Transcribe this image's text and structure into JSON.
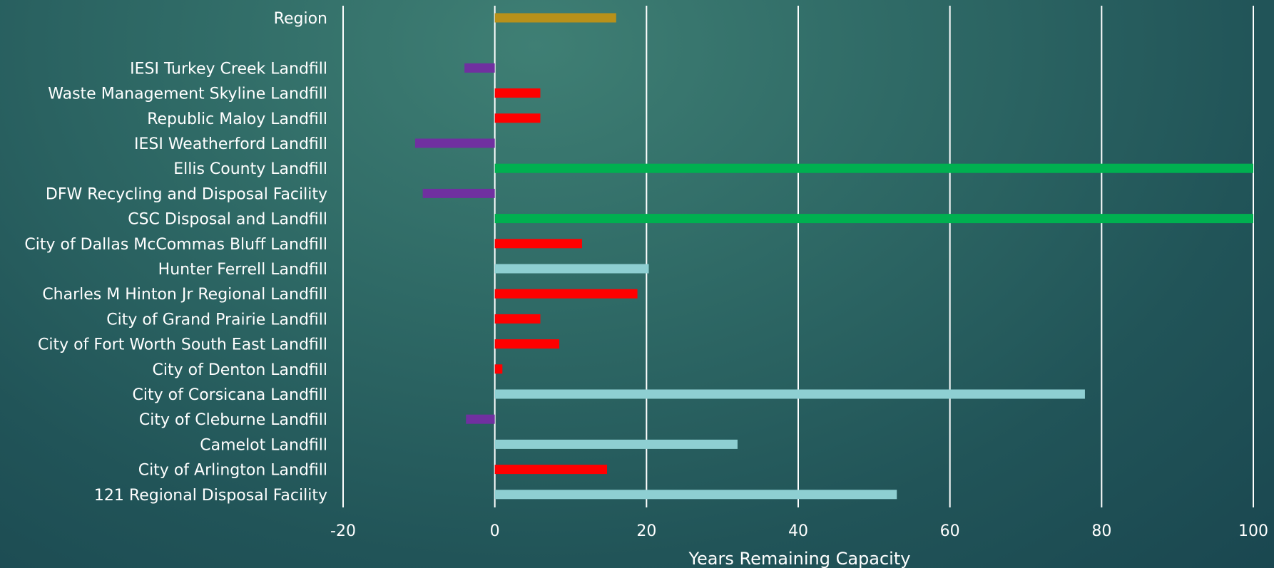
{
  "chart_data": {
    "type": "bar",
    "orientation": "horizontal",
    "xlabel": "Years Remaining Capacity",
    "xlim": [
      -20,
      100
    ],
    "xticks": [
      -20,
      0,
      20,
      40,
      60,
      80,
      100
    ],
    "grid": true,
    "legend": "none",
    "bars": [
      {
        "category": "Region",
        "value": 16,
        "color": "#b8911a"
      },
      {
        "category": "",
        "value": null,
        "color": null
      },
      {
        "category": "IESI Turkey Creek Landfill",
        "value": -4,
        "color": "#7030a0"
      },
      {
        "category": "Waste Management Skyline Landfill",
        "value": 6,
        "color": "#ff0000"
      },
      {
        "category": "Republic Maloy Landfill",
        "value": 6,
        "color": "#ff0000"
      },
      {
        "category": "IESI Weatherford Landfill",
        "value": -10.5,
        "color": "#7030a0"
      },
      {
        "category": "Ellis County Landfill",
        "value": 100,
        "color": "#00b050"
      },
      {
        "category": "DFW Recycling and Disposal Facility",
        "value": -9.5,
        "color": "#7030a0"
      },
      {
        "category": "CSC Disposal and Landfill",
        "value": 100,
        "color": "#00b050"
      },
      {
        "category": "City of Dallas McCommas Bluff Landfill",
        "value": 11.5,
        "color": "#ff0000"
      },
      {
        "category": "Hunter Ferrell Landfill",
        "value": 20.3,
        "color": "#8ecfd2"
      },
      {
        "category": "Charles M Hinton Jr Regional Landfill",
        "value": 18.8,
        "color": "#ff0000"
      },
      {
        "category": "City of Grand Prairie Landfill",
        "value": 6,
        "color": "#ff0000"
      },
      {
        "category": "City of Fort Worth South East Landfill",
        "value": 8.5,
        "color": "#ff0000"
      },
      {
        "category": "City of Denton Landfill",
        "value": 1,
        "color": "#ff0000"
      },
      {
        "category": "City of Corsicana Landfill",
        "value": 77.8,
        "color": "#8ecfd2"
      },
      {
        "category": "City of Cleburne Landfill",
        "value": -3.8,
        "color": "#7030a0"
      },
      {
        "category": "Camelot Landfill",
        "value": 32,
        "color": "#8ecfd2"
      },
      {
        "category": "City of Arlington Landfill",
        "value": 14.8,
        "color": "#ff0000"
      },
      {
        "category": "121 Regional Disposal Facility",
        "value": 53,
        "color": "#8ecfd2"
      }
    ]
  }
}
